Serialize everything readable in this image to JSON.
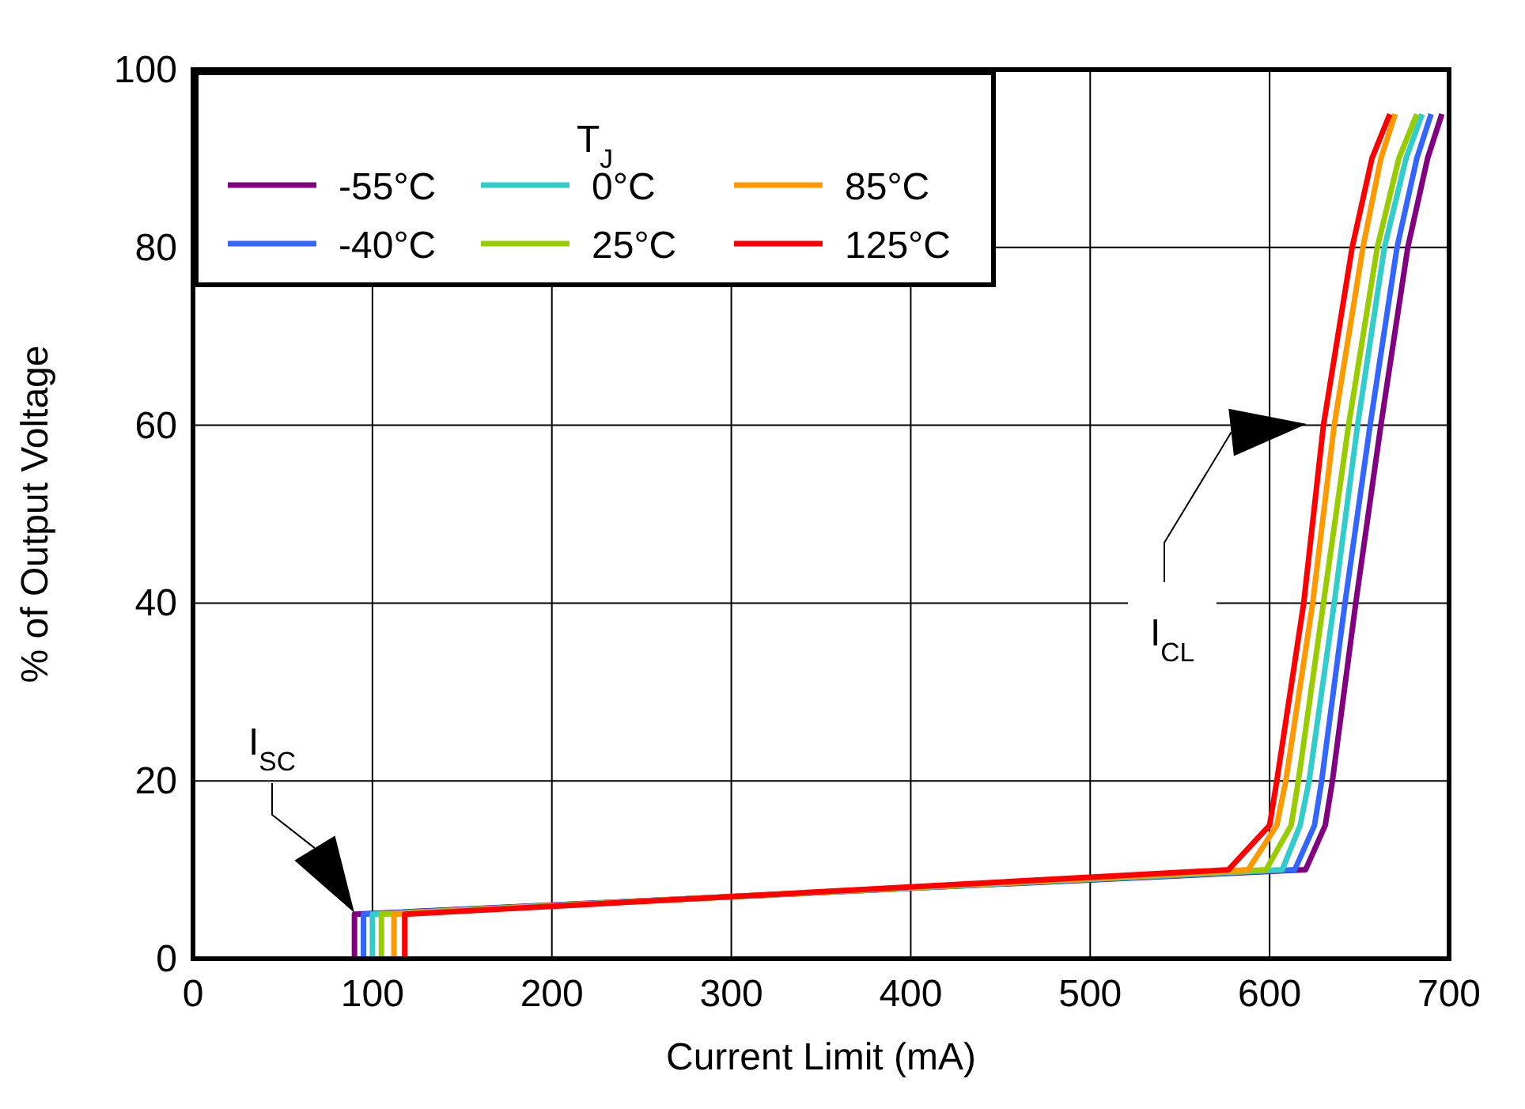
{
  "chart_data": {
    "type": "line",
    "xlabel": "Current Limit (mA)",
    "ylabel": "% of Output Voltage",
    "legend_title": "T$_{J}$",
    "legend": "top left",
    "grid": true,
    "line_style": "solid",
    "marker": "none",
    "xlim": [
      0,
      700
    ],
    "ylim": [
      0,
      100
    ],
    "xticks": [
      0,
      100,
      200,
      300,
      400,
      500,
      600,
      700
    ],
    "yticks": [
      0,
      20,
      40,
      60,
      80,
      100
    ],
    "series": [
      {
        "name": "-55°C",
        "color": "#800080",
        "x": [
          90,
          90,
          620,
          631,
          635,
          648,
          662,
          677,
          688,
          696
        ],
        "values": [
          0,
          5,
          10,
          15,
          20,
          40,
          60,
          80,
          90,
          95
        ]
      },
      {
        "name": "-40°C",
        "color": "#3366ff",
        "x": [
          95,
          95,
          614,
          625,
          629,
          642,
          656,
          671,
          682,
          690
        ],
        "values": [
          0,
          5,
          10,
          15,
          20,
          40,
          60,
          80,
          90,
          95
        ]
      },
      {
        "name": "0°C",
        "color": "#33cccc",
        "x": [
          100,
          100,
          607,
          617,
          622,
          636,
          649,
          664,
          676,
          685
        ],
        "values": [
          0,
          5,
          10,
          15,
          20,
          40,
          60,
          80,
          90,
          95
        ]
      },
      {
        "name": "25°C",
        "color": "#99cc00",
        "x": [
          105,
          105,
          598,
          612,
          616,
          630,
          644,
          660,
          672,
          682
        ],
        "values": [
          0,
          5,
          10,
          15,
          20,
          40,
          60,
          80,
          90,
          95
        ]
      },
      {
        "name": "85°C",
        "color": "#ff9900",
        "x": [
          112,
          112,
          588,
          604,
          609,
          624,
          636,
          652,
          662,
          670
        ],
        "values": [
          0,
          5,
          10,
          15,
          20,
          40,
          60,
          80,
          90,
          95
        ]
      },
      {
        "name": "125°C",
        "color": "#ff0000",
        "x": [
          118,
          118,
          577,
          600,
          604,
          619,
          630,
          646,
          657,
          667
        ],
        "values": [
          0,
          5,
          10,
          15,
          20,
          40,
          60,
          80,
          90,
          95
        ]
      }
    ],
    "annotations": [
      "I$_{SC}$",
      "I$_{CL}$"
    ]
  }
}
